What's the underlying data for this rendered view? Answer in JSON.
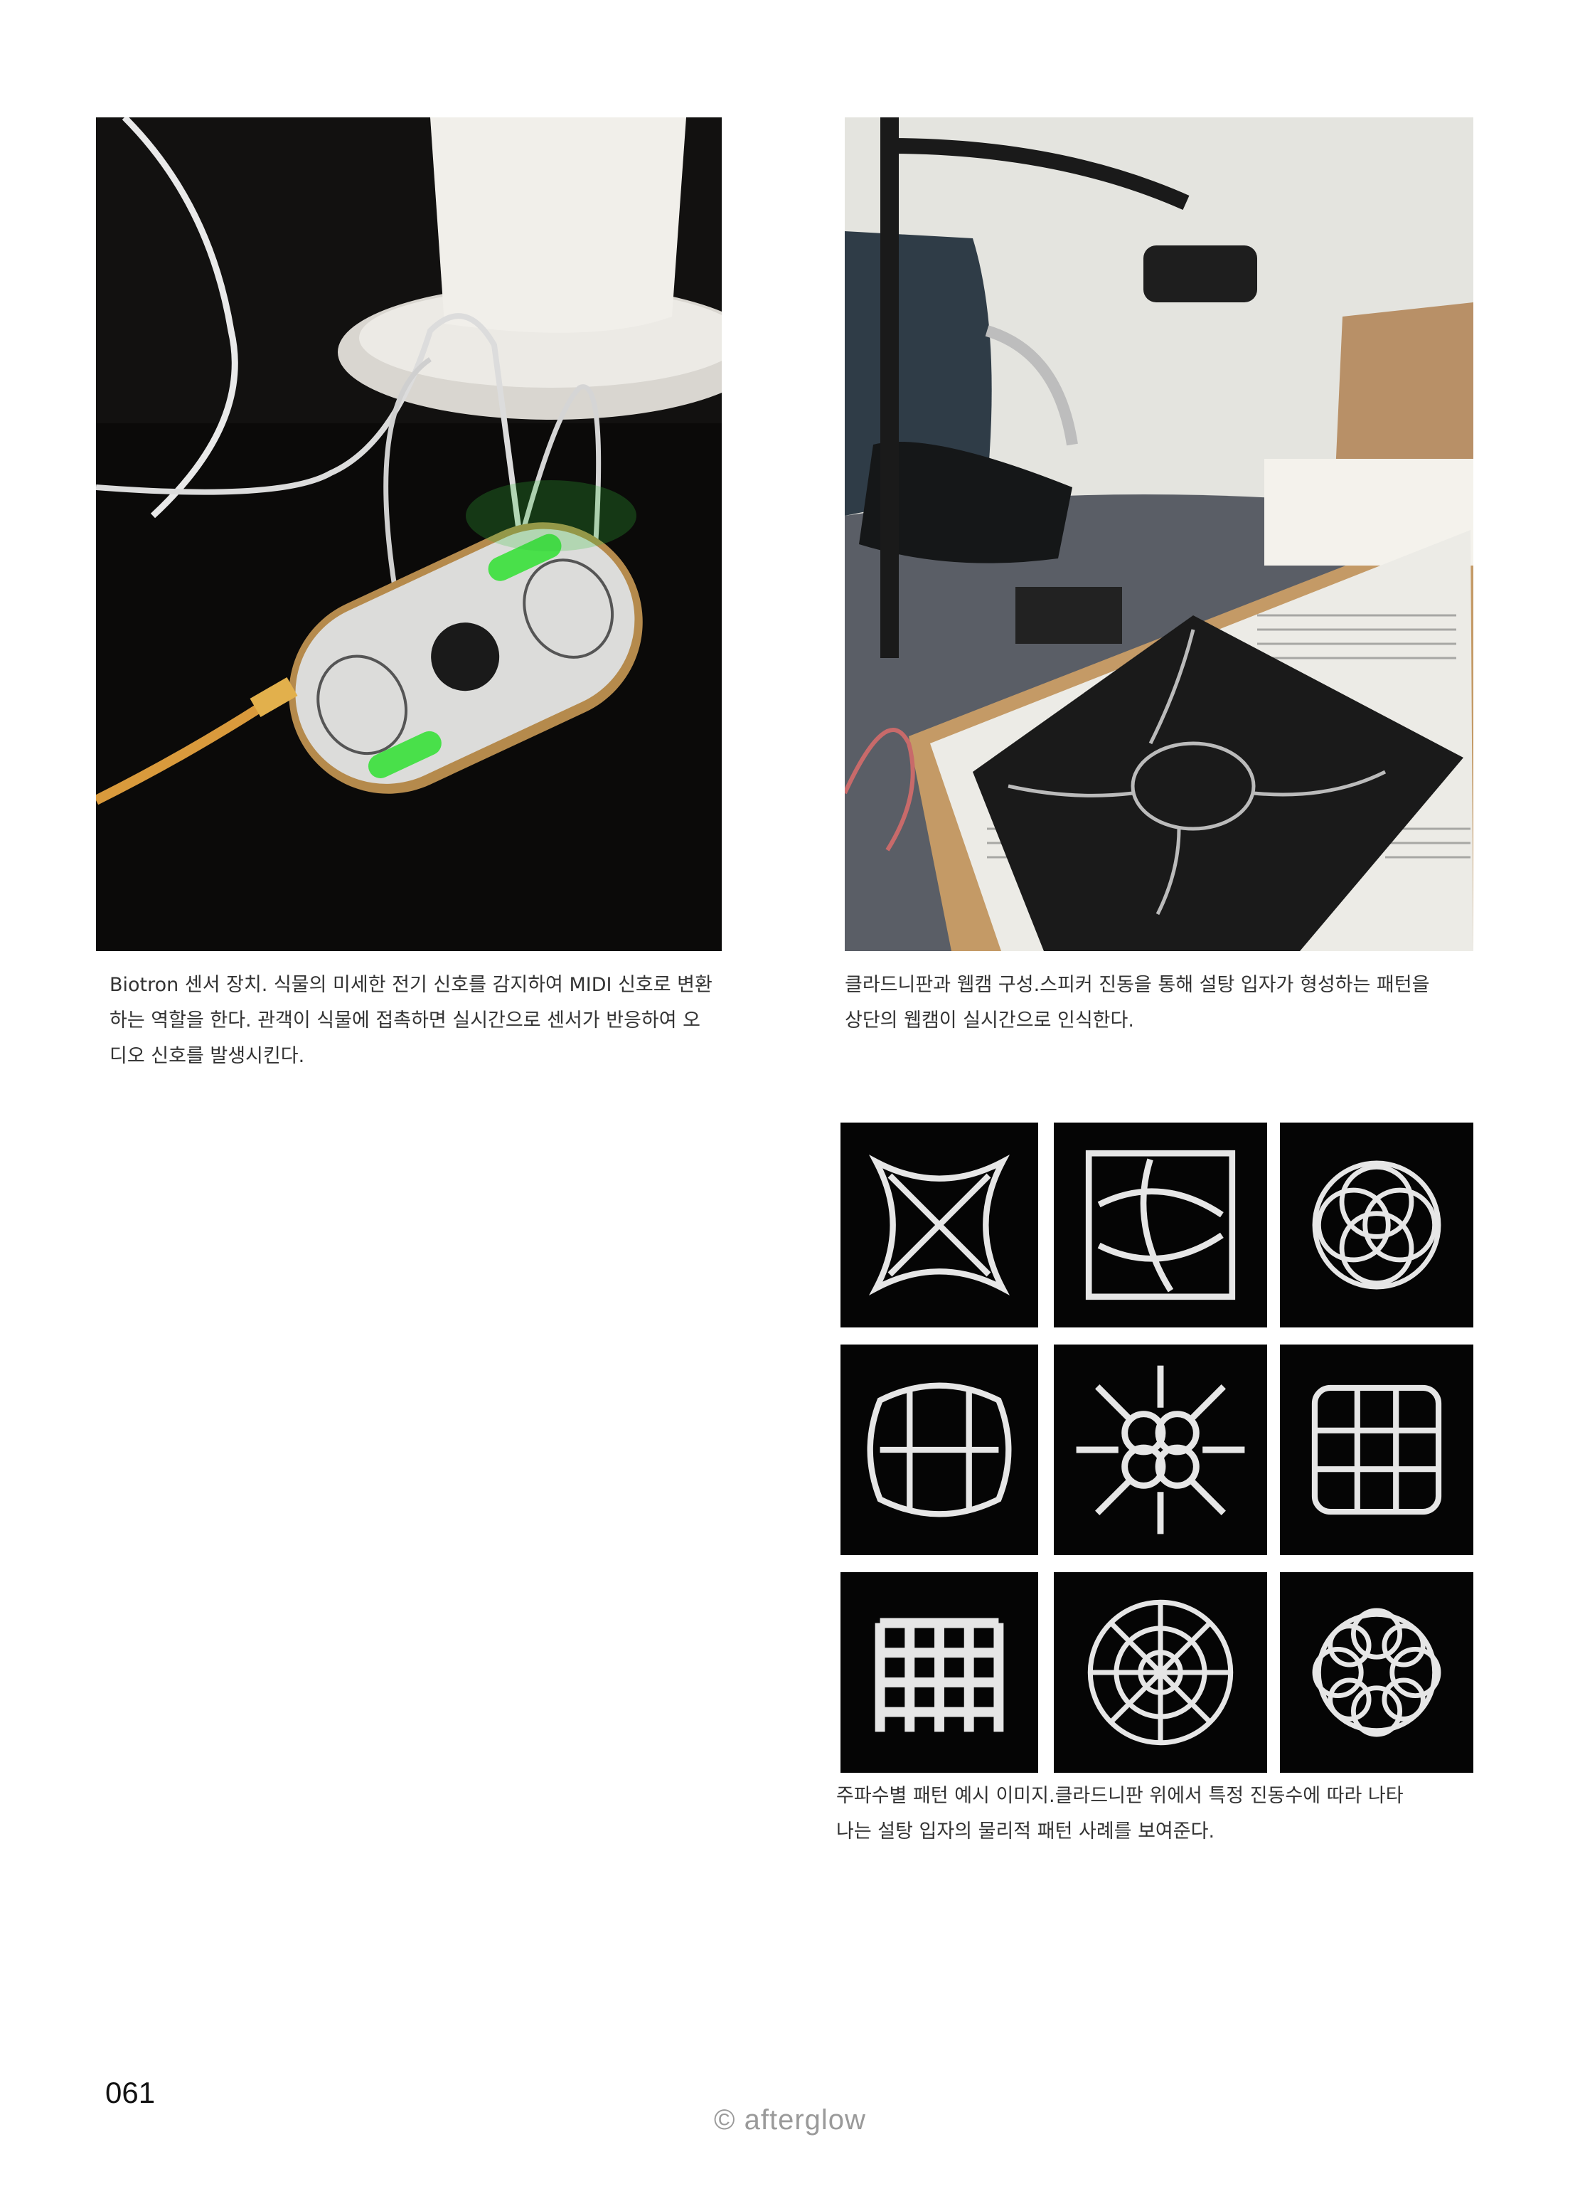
{
  "photos": {
    "biotron": {
      "caption_lines": [
        "Biotron 센서 장치. 식물의 미세한 전기 신호를 감지하여 MIDI 신호로 변환",
        "하는 역할을 한다. 관객이 식물에 접촉하면 실시간으로 센서가 반응하여 오",
        "디오 신호를 발생시킨다."
      ]
    },
    "chladni_setup": {
      "caption_lines": [
        "클라드니판과 웹캠 구성.스피커 진동을 통해 설탕 입자가 형성하는 패턴을",
        "상단의 웹캠이 실시간으로 인식한다."
      ]
    },
    "patterns": {
      "caption_lines": [
        "주파수별 패턴 예시 이미지.클라드니판 위에서 특정 진동수에 따라 나타",
        "나는 설탕 입자의 물리적 패턴 사례를 보여준다."
      ]
    }
  },
  "page_number": "061",
  "footer": "© afterglow"
}
